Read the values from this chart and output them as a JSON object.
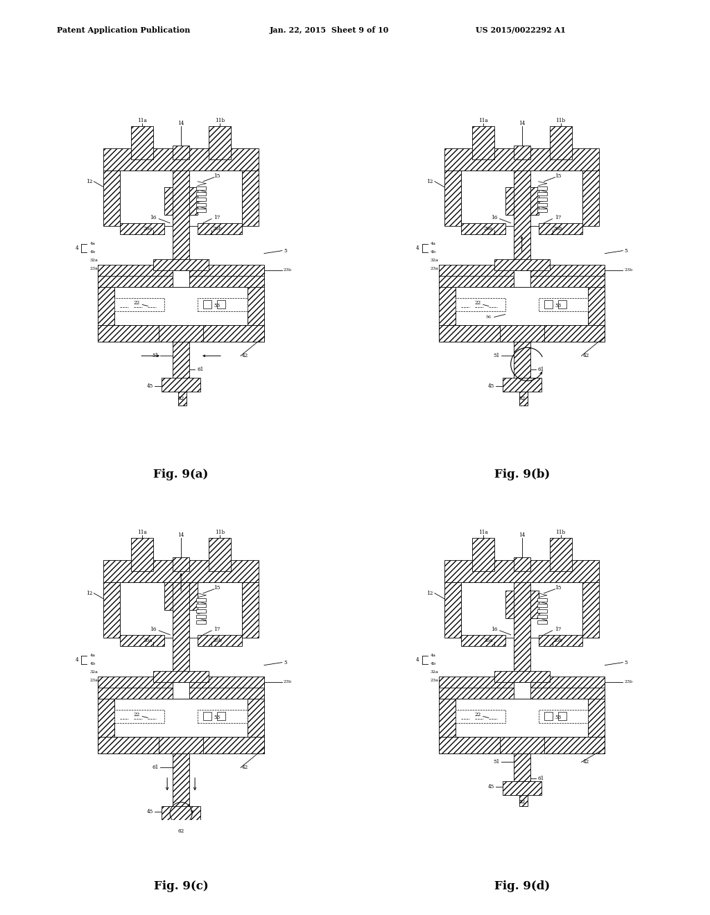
{
  "bg_color": "#ffffff",
  "header_left": "Patent Application Publication",
  "header_mid": "Jan. 22, 2015  Sheet 9 of 10",
  "header_right": "US 2015/0022292 A1",
  "fig_labels": [
    "Fig. 9(a)",
    "Fig. 9(b)",
    "Fig. 9(c)",
    "Fig. 9(d)"
  ],
  "panel_layout": {
    "a": {
      "col": 0,
      "row": 0
    },
    "b": {
      "col": 1,
      "row": 0
    },
    "c": {
      "col": 0,
      "row": 1
    },
    "d": {
      "col": 1,
      "row": 1
    }
  }
}
